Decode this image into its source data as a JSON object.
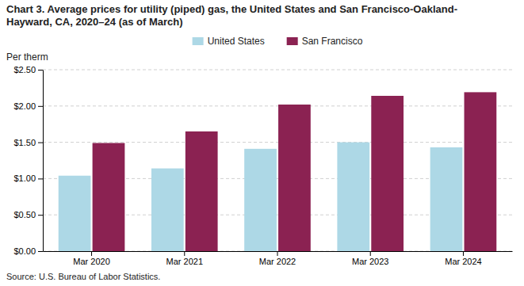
{
  "chart_data": {
    "type": "bar",
    "title": "Chart 3. Average prices for utility (piped) gas, the United States and San Francisco-Oakland-\nHayward, CA, 2020–24 (as of March)",
    "ylabel": "Per therm",
    "annotations": [
      "Source: U.S. Bureau of Labor Statistics."
    ],
    "categories": [
      "Mar 2020",
      "Mar 2021",
      "Mar 2022",
      "Mar 2023",
      "Mar 2024"
    ],
    "series": [
      {
        "name": "United States",
        "color": "#add8e6",
        "values": [
          1.04,
          1.14,
          1.41,
          1.5,
          1.43
        ]
      },
      {
        "name": "San Francisco",
        "color": "#8b2252",
        "values": [
          1.49,
          1.65,
          2.02,
          2.14,
          2.19
        ]
      }
    ],
    "ylim": [
      0,
      2.5
    ],
    "yticks": [
      {
        "value": 0.0,
        "label": "$0.00"
      },
      {
        "value": 0.5,
        "label": "$0.50"
      },
      {
        "value": 1.0,
        "label": "$1.00"
      },
      {
        "value": 1.5,
        "label": "$1.50"
      },
      {
        "value": 2.0,
        "label": "$2.00"
      },
      {
        "value": 2.5,
        "label": "$2.50"
      }
    ],
    "grid": true,
    "legend": "top"
  }
}
